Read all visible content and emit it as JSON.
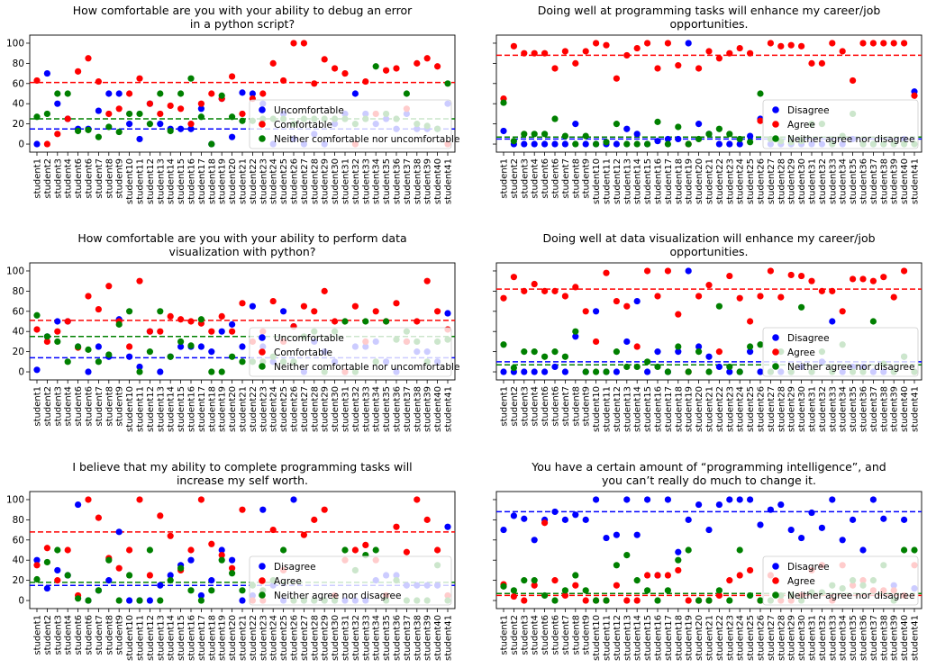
{
  "figure": {
    "students": [
      "student1",
      "student2",
      "student3",
      "student4",
      "student6",
      "student6",
      "student7",
      "student8",
      "student9",
      "student10",
      "student11",
      "student12",
      "student13",
      "student14",
      "student15",
      "student16",
      "student17",
      "student18",
      "student19",
      "student20",
      "student21",
      "student22",
      "student23",
      "student24",
      "student25",
      "student26",
      "student27",
      "student28",
      "student29",
      "student30",
      "student31",
      "student32",
      "student33",
      "student34",
      "student35",
      "student36",
      "student37",
      "student38",
      "student39",
      "student40",
      "student41"
    ],
    "yticks": [
      0,
      20,
      40,
      60,
      80,
      100
    ]
  },
  "chart_data": [
    {
      "type": "scatter",
      "title": "How comfortable are you with your ability to debug an error in a python script?",
      "title_lines": [
        "How comfortable are you with your ability to debug an error",
        "in a python script?"
      ],
      "ylim": [
        -8,
        108
      ],
      "legend_position": "lower-right",
      "series": [
        {
          "name": "Uncomfortable",
          "color": "#0000ff",
          "mean": 15,
          "values": [
            0,
            70,
            40,
            25,
            15,
            15,
            33,
            50,
            50,
            20,
            5,
            40,
            20,
            15,
            15,
            15,
            35,
            0,
            45,
            7,
            51,
            50,
            40,
            0,
            30,
            5,
            0,
            10,
            0,
            20,
            30,
            50,
            30,
            20,
            25,
            15,
            30,
            15,
            15,
            15,
            40
          ]
        },
        {
          "name": "Comfortable",
          "color": "#ff0000",
          "mean": 61,
          "values": [
            63,
            0,
            10,
            25,
            72,
            85,
            62,
            30,
            35,
            50,
            65,
            40,
            30,
            38,
            35,
            20,
            40,
            50,
            45,
            67,
            30,
            45,
            50,
            80,
            63,
            100,
            100,
            60,
            84,
            75,
            70,
            0,
            62,
            30,
            73,
            75,
            35,
            80,
            85,
            77,
            0
          ]
        },
        {
          "name": "Neither comfortable nor uncomfortable",
          "color": "#008000",
          "mean": 25,
          "values": [
            27,
            30,
            50,
            50,
            13,
            14,
            7,
            17,
            12,
            30,
            30,
            20,
            50,
            13,
            50,
            65,
            27,
            0,
            48,
            27,
            23,
            23,
            25,
            25,
            25,
            20,
            25,
            25,
            25,
            25,
            25,
            20,
            25,
            77,
            30,
            25,
            50,
            20,
            18,
            15,
            60
          ]
        }
      ]
    },
    {
      "type": "scatter",
      "title": "Doing well at programming tasks will enhance my career/job opportunities.",
      "title_lines": [
        "Doing well at programming tasks will enhance my career/job",
        "opportunities."
      ],
      "ylim": [
        -8,
        108
      ],
      "legend_position": "lower-right",
      "series": [
        {
          "name": "Disagree",
          "color": "#0000ff",
          "mean": 5,
          "values": [
            13,
            0,
            0,
            0,
            0,
            0,
            0,
            20,
            0,
            0,
            0,
            0,
            15,
            10,
            0,
            3,
            5,
            5,
            100,
            20,
            10,
            0,
            0,
            0,
            8,
            25,
            0,
            0,
            0,
            0,
            0,
            0,
            0,
            0,
            5,
            0,
            0,
            0,
            0,
            5,
            52
          ]
        },
        {
          "name": "Agree",
          "color": "#ff0000",
          "mean": 88,
          "values": [
            45,
            97,
            90,
            90,
            90,
            75,
            92,
            80,
            92,
            100,
            98,
            65,
            88,
            95,
            100,
            75,
            100,
            78,
            0,
            75,
            92,
            85,
            90,
            95,
            90,
            23,
            100,
            97,
            98,
            97,
            80,
            80,
            100,
            92,
            63,
            100,
            100,
            100,
            100,
            100,
            48
          ]
        },
        {
          "name": "Neither agree nor disagree",
          "color": "#008000",
          "mean": 7,
          "values": [
            41,
            3,
            10,
            10,
            10,
            25,
            8,
            0,
            8,
            0,
            2,
            20,
            0,
            0,
            0,
            22,
            0,
            17,
            0,
            5,
            10,
            15,
            10,
            5,
            2,
            50,
            5,
            3,
            2,
            3,
            20,
            20,
            0,
            8,
            30,
            0,
            0,
            0,
            0,
            0,
            0
          ]
        }
      ]
    },
    {
      "type": "scatter",
      "title": "How comfortable are you with your ability to perform data visualization with python?",
      "title_lines": [
        "How comfortable are you with your ability to perform data",
        "visualization with python?"
      ],
      "ylim": [
        -8,
        108
      ],
      "legend_position": "lower-right",
      "series": [
        {
          "name": "Uncomfortable",
          "color": "#0000ff",
          "mean": 14,
          "values": [
            2,
            35,
            50,
            50,
            25,
            0,
            25,
            15,
            52,
            15,
            5,
            40,
            0,
            15,
            25,
            25,
            25,
            20,
            40,
            47,
            25,
            65,
            25,
            10,
            60,
            45,
            0,
            30,
            20,
            10,
            0,
            25,
            25,
            30,
            10,
            0,
            30,
            20,
            20,
            10,
            58
          ]
        },
        {
          "name": "Comfortable",
          "color": "#ff0000",
          "mean": 51,
          "values": [
            42,
            30,
            40,
            50,
            24,
            75,
            62,
            85,
            50,
            25,
            90,
            40,
            40,
            55,
            52,
            50,
            48,
            40,
            55,
            40,
            68,
            30,
            40,
            70,
            30,
            45,
            65,
            60,
            80,
            50,
            0,
            65,
            30,
            60,
            50,
            68,
            30,
            50,
            90,
            60,
            42
          ]
        },
        {
          "name": "Neither comfortable nor uncomfortable",
          "color": "#008000",
          "mean": 35,
          "values": [
            56,
            35,
            30,
            10,
            25,
            22,
            10,
            17,
            47,
            60,
            0,
            20,
            60,
            15,
            30,
            26,
            52,
            0,
            0,
            15,
            10,
            10,
            10,
            15,
            10,
            10,
            35,
            40,
            0,
            40,
            50,
            0,
            50,
            10,
            50,
            32,
            40,
            30,
            10,
            30,
            32
          ]
        }
      ]
    },
    {
      "type": "scatter",
      "title": "Doing well at data visualization will enhance my career/job opportunities.",
      "title_lines": [
        "Doing well at data visualization will enhance my career/job",
        "opportunities."
      ],
      "ylim": [
        -8,
        108
      ],
      "legend_position": "lower-right",
      "series": [
        {
          "name": "Disagree",
          "color": "#0000ff",
          "mean": 10,
          "values": [
            0,
            0,
            0,
            0,
            0,
            5,
            0,
            35,
            0,
            60,
            0,
            0,
            30,
            70,
            0,
            20,
            0,
            20,
            100,
            25,
            15,
            5,
            0,
            0,
            20,
            0,
            0,
            0,
            0,
            5,
            0,
            10,
            50,
            0,
            5,
            5,
            0,
            0,
            0,
            15,
            0
          ]
        },
        {
          "name": "Agree",
          "color": "#ff0000",
          "mean": 82,
          "values": [
            73,
            94,
            80,
            87,
            80,
            80,
            75,
            84,
            60,
            30,
            98,
            70,
            65,
            25,
            100,
            75,
            100,
            57,
            0,
            75,
            86,
            20,
            95,
            73,
            50,
            75,
            100,
            74,
            96,
            95,
            90,
            80,
            80,
            60,
            92,
            92,
            90,
            94,
            74,
            100,
            0
          ]
        },
        {
          "name": "Neither agree nor disagree",
          "color": "#008000",
          "mean": 7,
          "values": [
            27,
            4,
            20,
            20,
            15,
            20,
            15,
            40,
            0,
            0,
            0,
            20,
            5,
            5,
            10,
            5,
            0,
            25,
            0,
            20,
            0,
            65,
            5,
            0,
            25,
            27,
            0,
            20,
            0,
            64,
            0,
            20,
            0,
            27,
            0,
            0,
            50,
            8,
            0,
            15,
            0
          ]
        }
      ]
    },
    {
      "type": "scatter",
      "title": "I believe that my ability to complete programming tasks will increase my self worth.",
      "title_lines": [
        "I believe that my ability to complete programming tasks will",
        "increase my self worth."
      ],
      "ylim": [
        -8,
        108
      ],
      "legend_position": "lower-right",
      "series": [
        {
          "name": "Disagree",
          "color": "#0000ff",
          "mean": 15,
          "values": [
            40,
            12,
            30,
            25,
            95,
            0,
            10,
            20,
            68,
            0,
            0,
            0,
            15,
            25,
            35,
            40,
            5,
            20,
            50,
            40,
            0,
            5,
            90,
            15,
            0,
            100,
            0,
            0,
            0,
            0,
            0,
            0,
            0,
            20,
            25,
            25,
            15,
            15,
            15,
            15,
            73
          ]
        },
        {
          "name": "Agree",
          "color": "#ff0000",
          "mean": 68,
          "values": [
            35,
            52,
            20,
            50,
            5,
            100,
            82,
            42,
            32,
            50,
            100,
            25,
            84,
            64,
            30,
            50,
            100,
            56,
            45,
            32,
            90,
            0,
            0,
            70,
            30,
            0,
            65,
            80,
            90,
            5,
            40,
            50,
            55,
            40,
            5,
            73,
            48,
            100,
            80,
            50,
            5
          ]
        },
        {
          "name": "Neither agree nor disagree",
          "color": "#008000",
          "mean": 18,
          "values": [
            21,
            38,
            50,
            25,
            2,
            0,
            10,
            40,
            0,
            25,
            0,
            50,
            0,
            20,
            32,
            10,
            0,
            10,
            40,
            27,
            10,
            15,
            10,
            20,
            50,
            0,
            0,
            0,
            0,
            0,
            50,
            30,
            45,
            50,
            0,
            20,
            0,
            0,
            0,
            35,
            0
          ]
        }
      ]
    },
    {
      "type": "scatter",
      "title": "You have a certain amount of “programming intelligence”, and you can’t really do much to change it.",
      "title_lines": [
        "You have a certain amount of “programming intelligence”, and",
        "you can’t really do much to change it."
      ],
      "ylim": [
        -8,
        108
      ],
      "legend_position": "lower-right",
      "series": [
        {
          "name": "Disagree",
          "color": "#0000ff",
          "mean": 88,
          "values": [
            70,
            84,
            81,
            60,
            80,
            88,
            80,
            85,
            80,
            100,
            62,
            65,
            100,
            65,
            100,
            25,
            100,
            48,
            80,
            95,
            70,
            95,
            100,
            100,
            100,
            75,
            90,
            95,
            70,
            62,
            87,
            72,
            100,
            60,
            80,
            50,
            100,
            81,
            15,
            80,
            12
          ]
        },
        {
          "name": "Agree",
          "color": "#ff0000",
          "mean": 5,
          "values": [
            16,
            4,
            0,
            15,
            77,
            20,
            5,
            15,
            0,
            0,
            0,
            15,
            0,
            0,
            25,
            25,
            25,
            30,
            0,
            0,
            0,
            5,
            20,
            25,
            30,
            0,
            25,
            0,
            0,
            5,
            30,
            35,
            0,
            35,
            15,
            20,
            10,
            10,
            10,
            5,
            35
          ]
        },
        {
          "name": "Neither agree nor disagree",
          "color": "#008000",
          "mean": 7,
          "values": [
            14,
            10,
            20,
            20,
            5,
            0,
            10,
            25,
            10,
            0,
            0,
            35,
            45,
            20,
            10,
            0,
            10,
            40,
            50,
            0,
            0,
            10,
            0,
            50,
            5,
            0,
            0,
            5,
            5,
            0,
            8,
            8,
            15,
            12,
            20,
            15,
            20,
            35,
            0,
            50,
            50
          ]
        }
      ]
    }
  ]
}
